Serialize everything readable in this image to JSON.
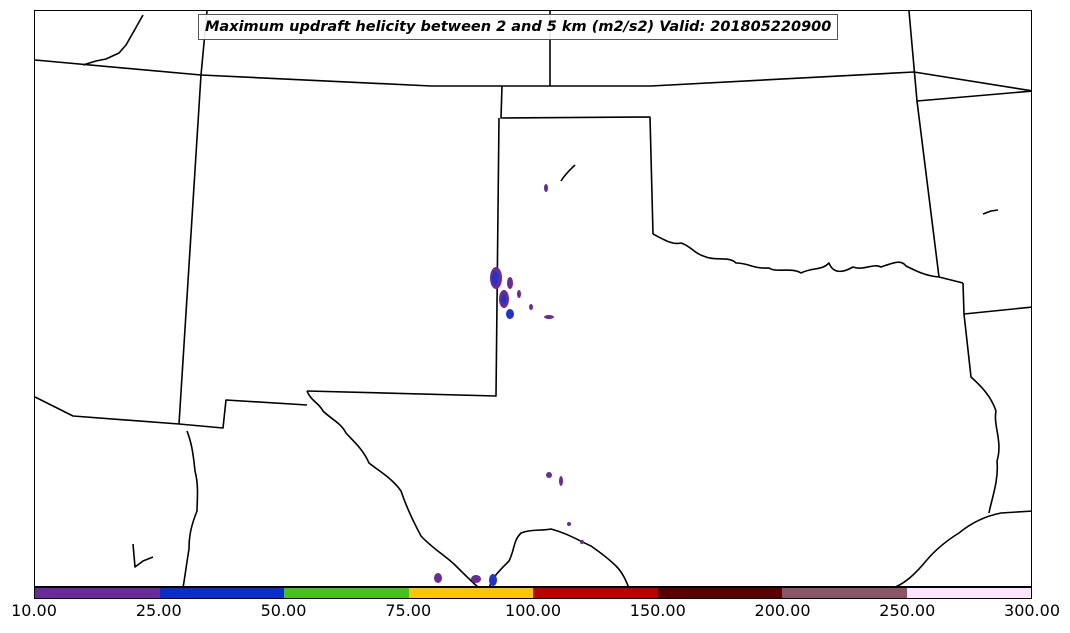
{
  "map": {
    "title": "Maximum updraft helicity between 2 and 5 km (m2/s2) Valid: 201805220900",
    "colors": {
      "border": "#000000",
      "storm_fill": "#6a2a9a",
      "storm_core": "#2233cc"
    }
  },
  "colorbar": {
    "segments": [
      "#6a2a9a",
      "#0a2ecc",
      "#44c11a",
      "#ffc400",
      "#bb0000",
      "#5a0000",
      "#8a5566",
      "#ffe4ff"
    ],
    "ticks": [
      "10.00",
      "25.00",
      "50.00",
      "75.00",
      "100.00",
      "150.00",
      "200.00",
      "250.00",
      "300.00"
    ]
  }
}
